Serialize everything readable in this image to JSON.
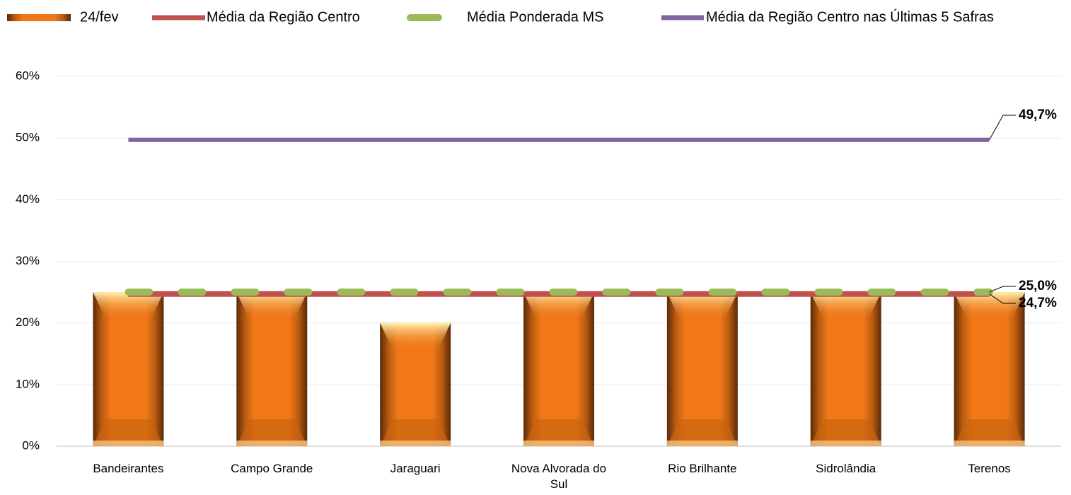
{
  "chart_data": {
    "type": "bar",
    "categories": [
      "Bandeirantes",
      "Campo Grande",
      "Jaraguari",
      "Nova Alvorada do Sul",
      "Rio Brilhante",
      "Sidrolândia",
      "Terenos"
    ],
    "series": [
      {
        "name": "24/fev",
        "type": "bar",
        "color": "#f07818",
        "values": [
          25,
          25,
          20,
          25,
          25,
          25,
          25
        ]
      },
      {
        "name": "Média da Região Centro",
        "type": "line",
        "color": "#c0504d",
        "values": [
          24.7,
          24.7,
          24.7,
          24.7,
          24.7,
          24.7,
          24.7
        ],
        "value_labels": [
          null,
          null,
          null,
          null,
          null,
          null,
          "24,7%"
        ]
      },
      {
        "name": "Média Ponderada MS",
        "type": "line",
        "dashed": true,
        "color": "#9bbb59",
        "values": [
          25.0,
          25.0,
          25.0,
          25.0,
          25.0,
          25.0,
          25.0
        ],
        "value_labels": [
          null,
          null,
          null,
          null,
          null,
          null,
          "25,0%"
        ]
      },
      {
        "name": "Média da Região Centro nas Últimas 5 Safras",
        "type": "line",
        "color": "#8064a2",
        "values": [
          49.7,
          49.7,
          49.7,
          49.7,
          49.7,
          49.7,
          49.7
        ],
        "value_labels": [
          null,
          null,
          null,
          null,
          null,
          null,
          "49,7%"
        ]
      }
    ],
    "ylim": [
      0,
      60
    ],
    "yticks": [
      {
        "value": 0,
        "label": "0%"
      },
      {
        "value": 10,
        "label": "10%"
      },
      {
        "value": 20,
        "label": "20%"
      },
      {
        "value": 30,
        "label": "30%"
      },
      {
        "value": 40,
        "label": "40%"
      },
      {
        "value": 50,
        "label": "50%"
      },
      {
        "value": 60,
        "label": "60%"
      }
    ],
    "grid": true,
    "legend": "top"
  }
}
